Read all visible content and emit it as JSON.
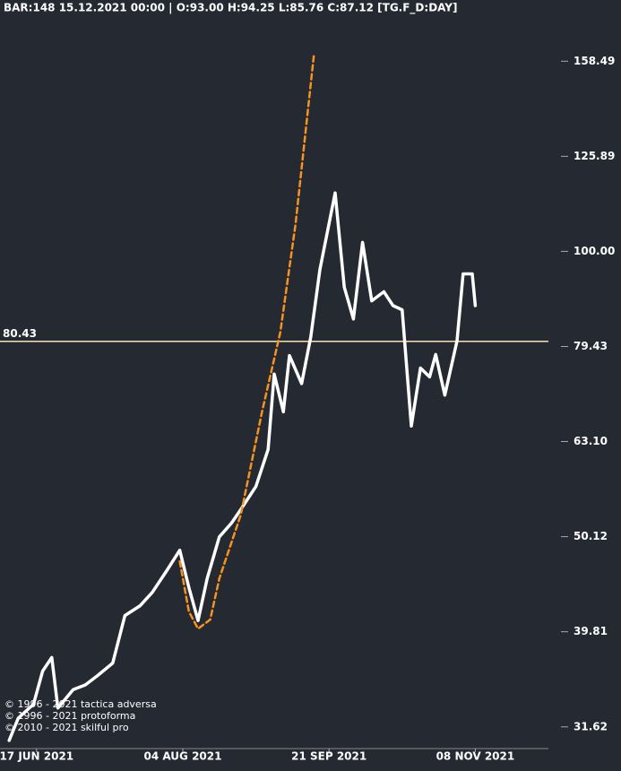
{
  "header": "BAR:148 15.12.2021 00:00 | O:93.00 H:94.25 L:85.76 C:87.12 [TG.F_D:DAY]",
  "copyright": [
    "© 1996 - 2021 tactica adversa",
    "© 1996 - 2021 protoforma",
    "© 2010 - 2021 skilful pro"
  ],
  "chart_data": {
    "type": "line",
    "log_scale": true,
    "background": "#252932",
    "xlim": [
      "2021-06-05",
      "2021-12-02"
    ],
    "xticks": [
      {
        "value": "2021-06-17",
        "label": "17 JUN 2021"
      },
      {
        "value": "2021-08-04",
        "label": "04 AUG 2021"
      },
      {
        "value": "2021-09-21",
        "label": "21 SEP 2021"
      },
      {
        "value": "2021-11-08",
        "label": "08 NOV 2021"
      }
    ],
    "ylim": [
      30,
      176
    ],
    "yticks": [
      158.49,
      125.89,
      {
        "value": 100,
        "label": "100.00"
      },
      79.43,
      {
        "value": 63.1,
        "label": "63.10"
      },
      50.12,
      39.81,
      31.62
    ],
    "hline": {
      "value": 80.43,
      "label": "80.43",
      "color": "#f8e1b4",
      "label_color": "#e7b468"
    },
    "series": [
      {
        "color": "#ffffff",
        "width": 3.5,
        "x": [
          "2021-06-08",
          "2021-06-11",
          "2021-06-16",
          "2021-06-19",
          "2021-06-22",
          "2021-06-24",
          "2021-06-29",
          "2021-07-03",
          "2021-07-07",
          "2021-07-12",
          "2021-07-16",
          "2021-07-21",
          "2021-07-25",
          "2021-07-30",
          "2021-08-03",
          "2021-08-06",
          "2021-08-09",
          "2021-08-12",
          "2021-08-16",
          "2021-08-20",
          "2021-08-23",
          "2021-08-28",
          "2021-09-01",
          "2021-09-03",
          "2021-09-06",
          "2021-09-08",
          "2021-09-12",
          "2021-09-15",
          "2021-09-18",
          "2021-09-23",
          "2021-09-26",
          "2021-09-29",
          "2021-10-02",
          "2021-10-05",
          "2021-10-09",
          "2021-10-12",
          "2021-10-15",
          "2021-10-18",
          "2021-10-21",
          "2021-10-24",
          "2021-10-26",
          "2021-10-29",
          "2021-11-02",
          "2021-11-04",
          "2021-11-07",
          "2021-11-08"
        ],
        "values": [
          30.6,
          32.3,
          33.4,
          36.2,
          37.4,
          33.1,
          34.6,
          35.0,
          35.8,
          36.9,
          41.4,
          42.4,
          43.8,
          46.3,
          48.5,
          44.3,
          40.9,
          45.3,
          50.1,
          51.8,
          53.5,
          56.6,
          61.9,
          74.3,
          67.8,
          77.7,
          72.6,
          81.3,
          95.7,
          115.2,
          91.7,
          84.9,
          102.2,
          88.7,
          90.7,
          87.7,
          86.8,
          65.5,
          75.4,
          73.8,
          77.9,
          70.6,
          80.5,
          94.7,
          94.7,
          87.7
        ]
      },
      {
        "color": "#f7931e",
        "width": 2.5,
        "dashed": true,
        "x": [
          "2021-08-03",
          "2021-08-06",
          "2021-08-09",
          "2021-08-13",
          "2021-08-16",
          "2021-08-23",
          "2021-08-30",
          "2021-09-05",
          "2021-09-10",
          "2021-09-16"
        ],
        "values": [
          47.2,
          41.8,
          40.1,
          41.0,
          45.3,
          52.8,
          67.8,
          82.2,
          106.8,
          160.6
        ]
      }
    ]
  }
}
